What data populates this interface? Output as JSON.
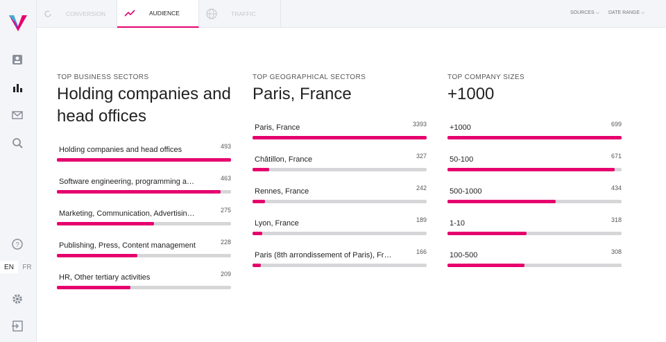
{
  "nav": {
    "tabs": [
      "CONVERSION",
      "AUDIENCE",
      "TRAFFIC"
    ],
    "active_tab": 1,
    "filters": [
      "SOURCES",
      "DATE RANGE"
    ]
  },
  "sidebar": {
    "languages": [
      "EN",
      "FR"
    ],
    "active_language": 0
  },
  "panels": [
    {
      "label": "TOP BUSINESS SECTORS",
      "headline": "Holding companies and head offices",
      "items": [
        {
          "name": "Holding companies and head offices",
          "value": 493
        },
        {
          "name": "Software engineering, programming a…",
          "value": 463
        },
        {
          "name": "Marketing, Communication, Advertisin…",
          "value": 275
        },
        {
          "name": "Publishing, Press, Content management",
          "value": 228
        },
        {
          "name": "HR, Other tertiary activities",
          "value": 209
        }
      ]
    },
    {
      "label": "TOP GEOGRAPHICAL SECTORS",
      "headline": "Paris, France",
      "items": [
        {
          "name": "Paris, France",
          "value": 3393
        },
        {
          "name": "Châtillon, France",
          "value": 327
        },
        {
          "name": "Rennes, France",
          "value": 242
        },
        {
          "name": "Lyon, France",
          "value": 189
        },
        {
          "name": "Paris (8th arrondissement of Paris), Fr…",
          "value": 166
        }
      ]
    },
    {
      "label": "TOP COMPANY SIZES",
      "headline": "+1000",
      "items": [
        {
          "name": "+1000",
          "value": 699
        },
        {
          "name": "50-100",
          "value": 671
        },
        {
          "name": "500-1000",
          "value": 434
        },
        {
          "name": "1-10",
          "value": 318
        },
        {
          "name": "100-500",
          "value": 308
        }
      ]
    }
  ]
}
